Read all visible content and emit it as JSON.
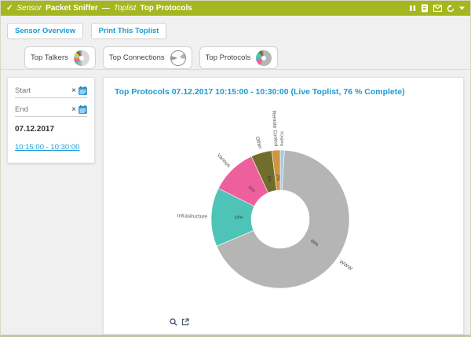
{
  "header": {
    "check_symbol": "✓",
    "sensor_label": "Sensor",
    "sensor_name": "Packet Sniffer",
    "separator": "—",
    "toplist_label": "Toplist",
    "toplist_name": "Top Protocols"
  },
  "toolbar": {
    "buttons": [
      "Sensor Overview",
      "Print This Toplist"
    ]
  },
  "tabs": [
    {
      "label": "Top Talkers",
      "icon": "top-talkers-pie-icon",
      "icon_border": false,
      "icon_slices": [
        [
          "#d9d9d9",
          50
        ],
        [
          "#b5b5b5",
          8
        ],
        [
          "#4ec3b7",
          6
        ],
        [
          "#ee609c",
          6
        ],
        [
          "#d2953f",
          6
        ],
        [
          "#a6cbe8",
          6
        ],
        [
          "#e8c648",
          6
        ],
        [
          "#716d2d",
          6
        ],
        [
          "#ee609c",
          3
        ],
        [
          "#4ec3b7",
          3
        ]
      ]
    },
    {
      "label": "Top Connections",
      "icon": "top-connections-pie-icon",
      "icon_border": true,
      "icon_slices": [
        [
          "#ffffff",
          14
        ],
        [
          "#b5b5b5",
          12
        ],
        [
          "#ffffff",
          44
        ],
        [
          "#4ec3b7",
          4
        ],
        [
          "#ee609c",
          3
        ],
        [
          "#d2953f",
          3
        ],
        [
          "#ffffff",
          20
        ]
      ]
    },
    {
      "label": "Top Protocols",
      "icon": "top-protocols-pie-icon",
      "icon_border": false,
      "icon_slices": [
        [
          "#a6cbe8",
          2
        ],
        [
          "#b5b5b5",
          56
        ],
        [
          "#ee609c",
          15
        ],
        [
          "#4ec3b7",
          16
        ],
        [
          "#716d2d",
          7
        ],
        [
          "#d2953f",
          4
        ]
      ]
    }
  ],
  "sidebar": {
    "start_placeholder": "Start",
    "end_placeholder": "End",
    "clear_symbol": "×",
    "date": "07.12.2017",
    "time_range": "10:15:00 - 10:30:00"
  },
  "main": {
    "title": "Top Protocols 07.12.2017 10:15:00 - 10:30:00 (Live Toplist, 76 % Complete)"
  },
  "chart_data": {
    "type": "pie",
    "donut": true,
    "title": "Top Protocols 07.12.2017 10:15:00 - 10:30:00 (Live Toplist, 76 % Complete)",
    "order": "clockwise from 12 o'clock",
    "slices": [
      {
        "label": "NetBIOS",
        "value": 1,
        "pct_label": "",
        "color": "#a6cbe8",
        "label_size": 4.8
      },
      {
        "label": "WWW",
        "value": 69,
        "pct_label": "69%",
        "color": "#b5b5b5",
        "label_size": 6.5
      },
      {
        "label": "Infrastructure",
        "value": 14,
        "pct_label": "14%",
        "color": "#4ec3b7",
        "label_size": 6.5
      },
      {
        "label": "Various",
        "value": 11,
        "pct_label": "11%",
        "color": "#ee609c",
        "label_size": 6.5
      },
      {
        "label": "Other",
        "value": 5,
        "pct_label": "5%",
        "color": "#716d2d",
        "label_size": 6.5
      },
      {
        "label": "Remote Control",
        "value": 2,
        "pct_label": "2%",
        "color": "#d2953f",
        "label_size": 6.5
      }
    ]
  },
  "colors": {
    "header_green": "#a6b61e",
    "accent_blue": "#1b9ad2",
    "label_gray": "#555555"
  }
}
